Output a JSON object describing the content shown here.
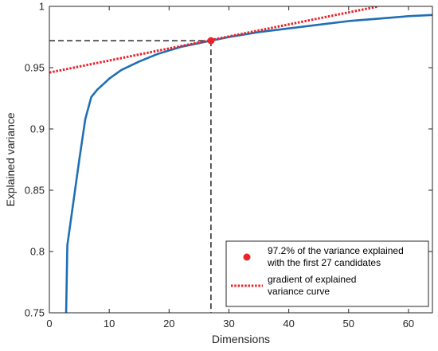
{
  "chart_data": {
    "type": "line",
    "xlabel": "Dimensions",
    "ylabel": "Explained variance",
    "xlim": [
      0,
      64
    ],
    "ylim": [
      0.75,
      1
    ],
    "x_ticks": [
      0,
      10,
      20,
      30,
      40,
      50,
      60
    ],
    "y_ticks": [
      0.75,
      0.8,
      0.85,
      0.9,
      0.95,
      1
    ],
    "x_tick_labels": [
      "0",
      "10",
      "20",
      "30",
      "40",
      "50",
      "60"
    ],
    "y_tick_labels": [
      "0.75",
      "0.8",
      "0.85",
      "0.9",
      "0.95",
      "1"
    ],
    "grid": false,
    "legend_position": "bottom-right",
    "series": [
      {
        "name": "",
        "style": "solid",
        "color": "#1f6fb4",
        "x": [
          2.8,
          3,
          4,
          5,
          6,
          7,
          8,
          10,
          12,
          15,
          18,
          20,
          22,
          25,
          27,
          30,
          35,
          40,
          45,
          50,
          55,
          60,
          64
        ],
        "y": [
          0.75,
          0.805,
          0.84,
          0.875,
          0.908,
          0.926,
          0.932,
          0.941,
          0.948,
          0.955,
          0.961,
          0.964,
          0.967,
          0.97,
          0.972,
          0.975,
          0.979,
          0.982,
          0.985,
          0.988,
          0.99,
          0.992,
          0.993
        ]
      },
      {
        "name": "gradient of explained variance curve",
        "style": "dotted",
        "color": "#e8242b",
        "x": [
          0,
          55
        ],
        "y": [
          0.946,
          1.0
        ]
      }
    ],
    "marker": {
      "name": "97.2% of the variance explained with the first 27 candidates",
      "x": 27,
      "y": 0.972,
      "color": "#e8242b"
    },
    "reference_lines": {
      "x": 27,
      "y": 0.972,
      "style": "dashed",
      "color": "#000000"
    },
    "legend": {
      "entries": [
        {
          "label_lines": [
            "97.2% of the variance explained",
            "with the first 27 candidates"
          ]
        },
        {
          "label_lines": [
            "gradient of explained",
            "variance curve"
          ]
        }
      ]
    }
  }
}
